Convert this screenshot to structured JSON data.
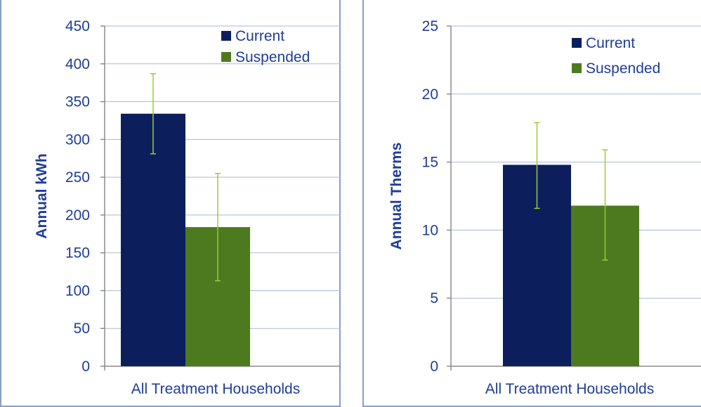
{
  "chart_data": [
    {
      "type": "bar",
      "title": "",
      "categories": [
        "All Treatment Households"
      ],
      "ylabel": "Annual kWh",
      "xlabel": "",
      "ylim": [
        0,
        450
      ],
      "yticks": [
        0,
        50,
        100,
        150,
        200,
        250,
        300,
        350,
        400,
        450
      ],
      "grid": true,
      "legend": "top-right",
      "series": [
        {
          "name": "Current",
          "color": "#0c1f5c",
          "values": [
            334
          ],
          "error": [
            [
              281,
              387
            ]
          ]
        },
        {
          "name": "Suspended",
          "color": "#4d7a1f",
          "values": [
            184
          ],
          "error": [
            [
              113,
              255
            ]
          ]
        }
      ],
      "error_color": "#9acd32"
    },
    {
      "type": "bar",
      "title": "",
      "categories": [
        "All Treatment Households"
      ],
      "ylabel": "Annual Therms",
      "xlabel": "",
      "ylim": [
        0,
        25
      ],
      "yticks": [
        0,
        5,
        10,
        15,
        20,
        25
      ],
      "grid": true,
      "legend": "top-right",
      "series": [
        {
          "name": "Current",
          "color": "#0c1f5c",
          "values": [
            14.8
          ],
          "error": [
            [
              11.6,
              17.9
            ]
          ]
        },
        {
          "name": "Suspended",
          "color": "#4d7a1f",
          "values": [
            11.8
          ],
          "error": [
            [
              7.8,
              15.9
            ]
          ]
        }
      ],
      "error_color": "#9acd32"
    }
  ],
  "style": {
    "text_color": "#1f3d99",
    "grid_color": "#a9b8d8",
    "axis_color": "#8c8c8c"
  }
}
